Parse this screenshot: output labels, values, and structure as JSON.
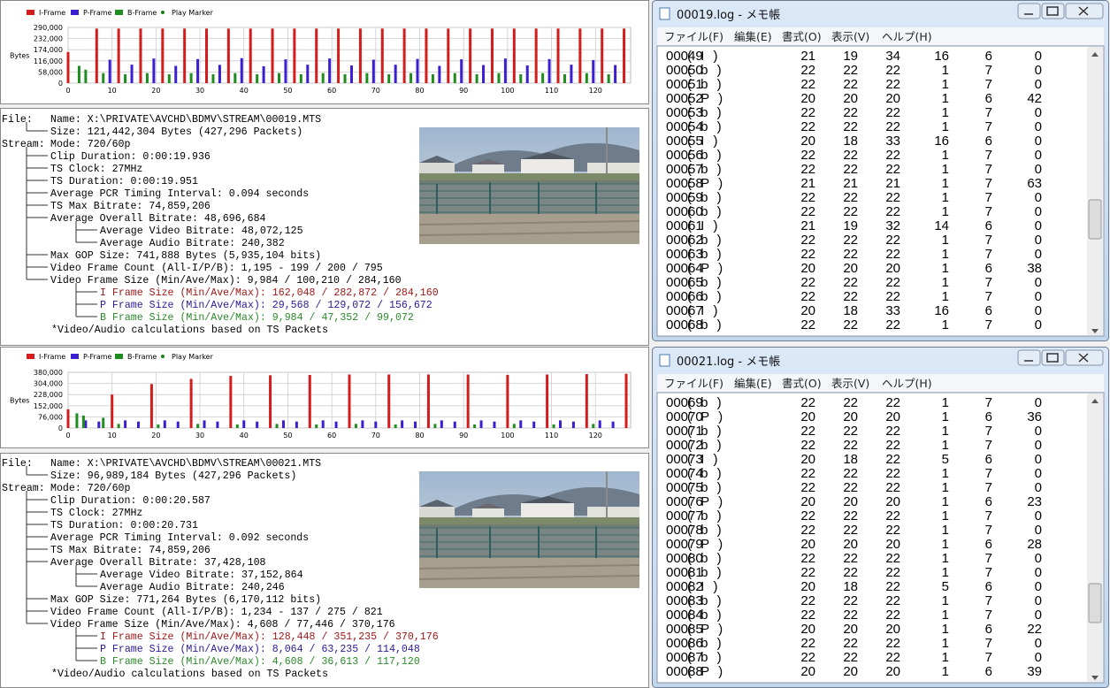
{
  "panels": [
    {
      "chart": {
        "type": "bar",
        "y_label": "Bytes",
        "grid": true,
        "xlim": [
          0,
          128
        ],
        "xticks": [
          0,
          10,
          20,
          30,
          40,
          50,
          60,
          70,
          80,
          90,
          100,
          110,
          120
        ],
        "ylim": [
          0,
          290000
        ],
        "yticks": [
          0,
          {
            "value": 58000,
            "label": "58,000"
          },
          {
            "value": 116000,
            "label": "116,000"
          },
          {
            "value": 174000,
            "label": "174,000"
          },
          {
            "value": 232000,
            "label": "232,000"
          },
          {
            "value": 290000,
            "label": "290,000"
          }
        ],
        "series": [
          {
            "name": "I-Frame",
            "color": "#d41c1c",
            "x": [
              0,
              6.5,
              11.5,
              16.5,
              21.5,
              26.5,
              31.5,
              36.5,
              41.5,
              46.5,
              51.5,
              56.5,
              61.5,
              66.5,
              71.5,
              76.5,
              81.5,
              86.5,
              91.5,
              96.5,
              101.5,
              106.5,
              111.5,
              116.5,
              121.5,
              126.5
            ],
            "values": [
              162000,
              284000,
              284000,
              284000,
              284000,
              284000,
              284000,
              284000,
              284000,
              284000,
              284000,
              284000,
              284000,
              284000,
              284000,
              284000,
              284000,
              284000,
              284000,
              284000,
              284000,
              284000,
              284000,
              284000,
              284000,
              284000
            ]
          },
          {
            "name": "P-Frame",
            "color": "#3c1ed2",
            "x": [
              9.5,
              14.5,
              19.5,
              24.5,
              29.5,
              34.5,
              39.5,
              44.5,
              49.5,
              54.5,
              59.5,
              64.5,
              69.5,
              74.5,
              79.5,
              84.5,
              89.5,
              94.5,
              99.5,
              104.5,
              109.5,
              114.5,
              119.5,
              124.5
            ],
            "values": [
              122000,
              96000,
              128000,
              90000,
              125000,
              95000,
              130000,
              88000,
              124000,
              96000,
              128000,
              92000,
              122000,
              96000,
              126000,
              90000,
              124000,
              94000,
              128000,
              92000,
              125000,
              96000,
              120000,
              94000
            ]
          },
          {
            "name": "B-Frame",
            "color": "#1f8c1f",
            "x": [
              2.5,
              4,
              8,
              13,
              18,
              23,
              28,
              33,
              38,
              43,
              48,
              53,
              58,
              63,
              68,
              73,
              78,
              83,
              88,
              93,
              98,
              103,
              108,
              113,
              118,
              123
            ],
            "values": [
              90000,
              70000,
              52000,
              46000,
              52000,
              46000,
              52000,
              46000,
              52000,
              46000,
              52000,
              46000,
              52000,
              46000,
              52000,
              46000,
              52000,
              46000,
              52000,
              46000,
              52000,
              46000,
              52000,
              46000,
              52000,
              46000
            ]
          },
          {
            "name": "Play Marker",
            "color": "#178017",
            "marker": "dot",
            "x": [],
            "values": []
          }
        ]
      },
      "info": {
        "sections": [
          {
            "head": "File:",
            "text": "Name: X:\\PRIVATE\\AVCHD\\BDMV\\STREAM\\00019.MTS",
            "children": [
              {
                "text": "Size: 121,442,304 Bytes (427,296 Packets)"
              }
            ]
          },
          {
            "head": "Stream:",
            "text": "Mode: 720/60p",
            "children": [
              {
                "text": "Clip Duration: 0:00:19.936"
              },
              {
                "text": "TS Clock: 27MHz"
              },
              {
                "text": "TS Duration:   0:00:19.951"
              },
              {
                "text": "Average PCR Timing Interval: 0.094 seconds"
              },
              {
                "text": "TS Max Bitrate: 74,859,206"
              },
              {
                "text": "Average Overall Bitrate: 48,696,684",
                "children": [
                  {
                    "text": "Average Video Bitrate: 48,072,125"
                  },
                  {
                    "text": "Average Audio Bitrate: 240,382"
                  }
                ]
              },
              {
                "text": "Max GOP Size: 741,888 Bytes (5,935,104 bits)"
              },
              {
                "text": "Video Frame Count (All-I/P/B): 1,195 - 199 / 200 / 795"
              },
              {
                "text": "Video Frame Size (Min/Ave/Max): 9,984 / 100,210 / 284,160",
                "children": [
                  {
                    "text": "I Frame Size (Min/Ave/Max): 162,048 / 282,872 / 284,160",
                    "color": "#a01818"
                  },
                  {
                    "text": "P Frame Size (Min/Ave/Max): 29,568 / 129,072 / 156,672",
                    "color": "#2a1a9a"
                  },
                  {
                    "text": "B Frame Size (Min/Ave/Max): 9,984 / 47,352 / 99,072",
                    "color": "#2a8a2a"
                  }
                ]
              }
            ]
          }
        ],
        "note": "*Video/Audio calculations based on TS Packets"
      }
    },
    {
      "chart": {
        "type": "bar",
        "y_label": "Bytes",
        "grid": true,
        "xlim": [
          0,
          128
        ],
        "xticks": [
          0,
          10,
          20,
          30,
          40,
          50,
          60,
          70,
          80,
          90,
          100,
          110,
          120
        ],
        "ylim": [
          0,
          380000
        ],
        "yticks": [
          0,
          {
            "value": 76000,
            "label": "76,000"
          },
          {
            "value": 152000,
            "label": "152,000"
          },
          {
            "value": 228000,
            "label": "228,000"
          },
          {
            "value": 304000,
            "label": "304,000"
          },
          {
            "value": 380000,
            "label": "380,000"
          }
        ],
        "series": [
          {
            "name": "I-Frame",
            "color": "#d41c1c",
            "x": [
              0,
              10,
              19,
              28,
              37,
              46,
              55,
              64,
              73,
              82,
              91,
              100,
              109,
              118,
              127
            ],
            "values": [
              128000,
              228000,
              300000,
              335000,
              355000,
              360000,
              362000,
              365000,
              365000,
              365000,
              365000,
              362000,
              365000,
              368000,
              370000
            ]
          },
          {
            "name": "P-Frame",
            "color": "#3c1ed2",
            "x": [
              4,
              7,
              13,
              16,
              22,
              25,
              31,
              34,
              40,
              43,
              49,
              52,
              58,
              61,
              67,
              70,
              76,
              79,
              85,
              88,
              94,
              97,
              103,
              106,
              112,
              115,
              121,
              124
            ],
            "values": [
              52000,
              44000,
              52000,
              44000,
              52000,
              44000,
              52000,
              44000,
              52000,
              44000,
              52000,
              44000,
              52000,
              44000,
              52000,
              44000,
              52000,
              44000,
              52000,
              44000,
              52000,
              44000,
              52000,
              44000,
              52000,
              44000,
              52000,
              44000
            ]
          },
          {
            "name": "B-Frame",
            "color": "#1f8c1f",
            "x": [
              2,
              3.5,
              8,
              11.5,
              20.5,
              29.5,
              38.5,
              47.5,
              56.5,
              65.5,
              74.5,
              83.5,
              92.5,
              101.5,
              110.5,
              119.5
            ],
            "values": [
              100000,
              85000,
              70000,
              28000,
              24000,
              28000,
              24000,
              28000,
              24000,
              28000,
              24000,
              28000,
              24000,
              28000,
              24000,
              28000
            ]
          },
          {
            "name": "Play Marker",
            "color": "#178017",
            "marker": "dot",
            "x": [],
            "values": []
          }
        ]
      },
      "info": {
        "sections": [
          {
            "head": "File:",
            "text": "Name: X:\\PRIVATE\\AVCHD\\BDMV\\STREAM\\00021.MTS",
            "children": [
              {
                "text": "Size: 96,989,184 Bytes (427,296 Packets)"
              }
            ]
          },
          {
            "head": "Stream:",
            "text": "Mode: 720/60p",
            "children": [
              {
                "text": "Clip Duration: 0:00:20.587"
              },
              {
                "text": "TS Clock: 27MHz"
              },
              {
                "text": "TS Duration:   0:00:20.731"
              },
              {
                "text": "Average PCR Timing Interval: 0.092 seconds"
              },
              {
                "text": "TS Max Bitrate: 74,859,206"
              },
              {
                "text": "Average Overall Bitrate: 37,428,108",
                "children": [
                  {
                    "text": "Average Video Bitrate: 37,152,864"
                  },
                  {
                    "text": "Average Audio Bitrate: 240,246"
                  }
                ]
              },
              {
                "text": "Max GOP Size: 771,264 Bytes (6,170,112 bits)"
              },
              {
                "text": "Video Frame Count (All-I/P/B): 1,234 - 137 / 275 / 821"
              },
              {
                "text": "Video Frame Size (Min/Ave/Max): 4,608 / 77,446 / 370,176",
                "children": [
                  {
                    "text": "I Frame Size (Min/Ave/Max): 128,448 / 351,235 / 370,176",
                    "color": "#a01818"
                  },
                  {
                    "text": "P Frame Size (Min/Ave/Max): 8,064 / 63,235 / 114,048",
                    "color": "#2a1a9a"
                  },
                  {
                    "text": "B Frame Size (Min/Ave/Max): 4,608 / 36,613 / 117,120",
                    "color": "#2a8a2a"
                  }
                ]
              }
            ]
          }
        ],
        "note": "*Video/Audio calculations based on TS Packets"
      }
    }
  ],
  "windows": [
    {
      "title": "00019.log - メモ帳",
      "menu": [
        "ファイル(F)",
        "編集(E)",
        "書式(O)",
        "表示(V)",
        "ヘルプ(H)"
      ],
      "rows": [
        [
          "00049",
          "( I )",
          21,
          19,
          34,
          16,
          6,
          0
        ],
        [
          "00050",
          "( b )",
          22,
          22,
          22,
          1,
          7,
          0
        ],
        [
          "00051",
          "( b )",
          22,
          22,
          22,
          1,
          7,
          0
        ],
        [
          "00052",
          "( P )",
          20,
          20,
          20,
          1,
          6,
          42
        ],
        [
          "00053",
          "( b )",
          22,
          22,
          22,
          1,
          7,
          0
        ],
        [
          "00054",
          "( b )",
          22,
          22,
          22,
          1,
          7,
          0
        ],
        [
          "00055",
          "( I )",
          20,
          18,
          33,
          16,
          6,
          0
        ],
        [
          "00056",
          "( b )",
          22,
          22,
          22,
          1,
          7,
          0
        ],
        [
          "00057",
          "( b )",
          22,
          22,
          22,
          1,
          7,
          0
        ],
        [
          "00058",
          "( P )",
          21,
          21,
          21,
          1,
          7,
          63
        ],
        [
          "00059",
          "( b )",
          22,
          22,
          22,
          1,
          7,
          0
        ],
        [
          "00060",
          "( b )",
          22,
          22,
          22,
          1,
          7,
          0
        ],
        [
          "00061",
          "( I )",
          21,
          19,
          32,
          14,
          6,
          0
        ],
        [
          "00062",
          "( b )",
          22,
          22,
          22,
          1,
          7,
          0
        ],
        [
          "00063",
          "( b )",
          22,
          22,
          22,
          1,
          7,
          0
        ],
        [
          "00064",
          "( P )",
          20,
          20,
          20,
          1,
          6,
          38
        ],
        [
          "00065",
          "( b )",
          22,
          22,
          22,
          1,
          7,
          0
        ],
        [
          "00066",
          "( b )",
          22,
          22,
          22,
          1,
          7,
          0
        ],
        [
          "00067",
          "( I )",
          20,
          18,
          33,
          16,
          6,
          0
        ],
        [
          "00068",
          "( b )",
          22,
          22,
          22,
          1,
          7,
          0
        ]
      ]
    },
    {
      "title": "00021.log - メモ帳",
      "menu": [
        "ファイル(F)",
        "編集(E)",
        "書式(O)",
        "表示(V)",
        "ヘルプ(H)"
      ],
      "rows": [
        [
          "00069",
          "( b )",
          22,
          22,
          22,
          1,
          7,
          0
        ],
        [
          "00070",
          "( P )",
          20,
          20,
          20,
          1,
          6,
          36
        ],
        [
          "00071",
          "( b )",
          22,
          22,
          22,
          1,
          7,
          0
        ],
        [
          "00072",
          "( b )",
          22,
          22,
          22,
          1,
          7,
          0
        ],
        [
          "00073",
          "( I )",
          20,
          18,
          22,
          5,
          6,
          0
        ],
        [
          "00074",
          "( b )",
          22,
          22,
          22,
          1,
          7,
          0
        ],
        [
          "00075",
          "( b )",
          22,
          22,
          22,
          1,
          7,
          0
        ],
        [
          "00076",
          "( P )",
          20,
          20,
          20,
          1,
          6,
          23
        ],
        [
          "00077",
          "( b )",
          22,
          22,
          22,
          1,
          7,
          0
        ],
        [
          "00078",
          "( b )",
          22,
          22,
          22,
          1,
          7,
          0
        ],
        [
          "00079",
          "( P )",
          20,
          20,
          20,
          1,
          6,
          28
        ],
        [
          "00080",
          "( b )",
          22,
          22,
          22,
          1,
          7,
          0
        ],
        [
          "00081",
          "( b )",
          22,
          22,
          22,
          1,
          7,
          0
        ],
        [
          "00082",
          "( I )",
          20,
          18,
          22,
          5,
          6,
          0
        ],
        [
          "00083",
          "( b )",
          22,
          22,
          22,
          1,
          7,
          0
        ],
        [
          "00084",
          "( b )",
          22,
          22,
          22,
          1,
          7,
          0
        ],
        [
          "00085",
          "( P )",
          20,
          20,
          20,
          1,
          6,
          22
        ],
        [
          "00086",
          "( b )",
          22,
          22,
          22,
          1,
          7,
          0
        ],
        [
          "00087",
          "( b )",
          22,
          22,
          22,
          1,
          7,
          0
        ],
        [
          "00088",
          "( P )",
          20,
          20,
          20,
          1,
          6,
          39
        ]
      ]
    }
  ]
}
